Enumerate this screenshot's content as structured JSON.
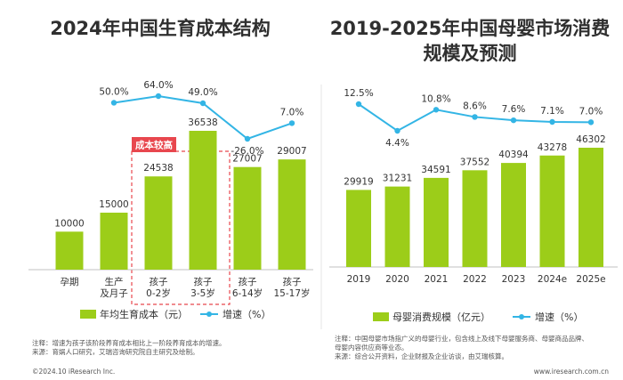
{
  "colors": {
    "bar": "#9ccd19",
    "line": "#33b5e5",
    "highlight": "#e8474e",
    "axis": "#c0c0c0",
    "text": "#333333"
  },
  "left": {
    "title": "2024年中国生育成本结构",
    "highlight_label": "成本较高",
    "legend_bar": "年均生育成本（元）",
    "legend_line": "增速（%）",
    "notes": [
      "注释：增速为孩子该阶段养育成本相比上一阶段养育成本的增速。",
      "来源：育娲人口研究，艾瑞咨询研究院自主研究及绘制。"
    ]
  },
  "right": {
    "title": "2019-2025年中国母婴市场消费规模及预测",
    "legend_bar": "母婴消费规模（亿元）",
    "legend_line": "增速（%）",
    "notes": [
      "注释：中国母婴市场指广义的母婴行业，包含线上及线下母婴服务商、母婴商品品牌、",
      "母婴内容供应商等业态。",
      "来源：综合公开资料，企业财报及企业访谈，由艾瑞核算。"
    ]
  },
  "footer": {
    "left": "©2024.10 iResearch Inc.",
    "right": "www.iresearch.com.cn"
  },
  "chart_data": [
    {
      "type": "bar",
      "title": "2024年中国生育成本结构",
      "categories": [
        [
          "孕期"
        ],
        [
          "生产",
          "及月子"
        ],
        [
          "孩子",
          "0-2岁"
        ],
        [
          "孩子",
          "3-5岁"
        ],
        [
          "孩子",
          "6-14岁"
        ],
        [
          "孩子",
          "15-17岁"
        ]
      ],
      "series": [
        {
          "name": "年均生育成本（元）",
          "type": "bar",
          "values": [
            10000,
            15000,
            24538,
            36538,
            27007,
            29007
          ],
          "labels": [
            "10000",
            "15000",
            "24538",
            "36538",
            "27007",
            "29007"
          ]
        },
        {
          "name": "增速（%）",
          "type": "line",
          "values": [
            null,
            50.0,
            64.0,
            49.0,
            -26.0,
            7.0
          ],
          "labels": [
            "",
            "50.0%",
            "64.0%",
            "49.0%",
            "-26.0%",
            "7.0%"
          ]
        }
      ],
      "highlight_categories": [
        2,
        3
      ],
      "annotation": "成本较高",
      "legend": "bottom"
    },
    {
      "type": "bar",
      "title": "2019-2025年中国母婴市场消费规模及预测",
      "categories": [
        "2019",
        "2020",
        "2021",
        "2022",
        "2023",
        "2024e",
        "2025e"
      ],
      "series": [
        {
          "name": "母婴消费规模（亿元）",
          "type": "bar",
          "values": [
            29919,
            31231,
            34591,
            37552,
            40394,
            43278,
            46302
          ],
          "labels": [
            "29919",
            "31231",
            "34591",
            "37552",
            "40394",
            "43278",
            "46302"
          ]
        },
        {
          "name": "增速（%）",
          "type": "line",
          "values": [
            12.5,
            4.4,
            10.8,
            8.6,
            7.6,
            7.1,
            7.0
          ],
          "labels": [
            "12.5%",
            "4.4%",
            "10.8%",
            "8.6%",
            "7.6%",
            "7.1%",
            "7.0%"
          ]
        }
      ],
      "legend": "bottom"
    }
  ]
}
